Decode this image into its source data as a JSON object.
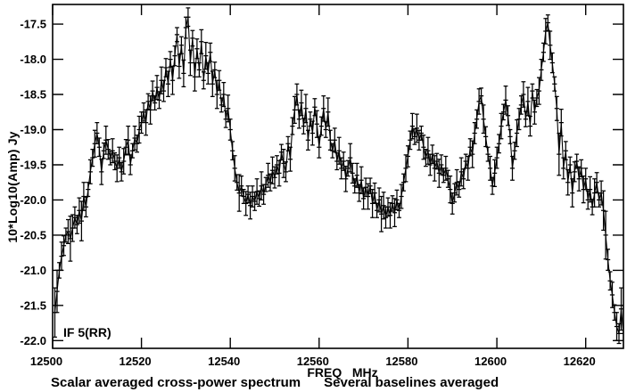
{
  "chart_data": {
    "type": "line",
    "title": "Scalar averaged cross-power spectrum — Several baselines averaged",
    "caption_left": "Scalar averaged cross-power spectrum",
    "caption_right": "Several baselines averaged",
    "xlabel": "FREQ   MHz",
    "ylabel": "10*Log10(Amp) Jy",
    "if_label": "IF 5(RR)",
    "grid": false,
    "legend": "none",
    "marker": "plus-with-capped-error-bars",
    "line_color": "#000000",
    "background": "#ffffff",
    "xlim": [
      12500,
      12628.5
    ],
    "ylim": [
      -22.11,
      -17.22
    ],
    "xticks": [
      12500,
      12520,
      12540,
      12560,
      12580,
      12600,
      12620
    ],
    "xtick_labels": [
      "12500",
      "12520",
      "12540",
      "12560",
      "12580",
      "12600",
      "12620"
    ],
    "yticks": [
      -17.5,
      -18.0,
      -18.5,
      -19.0,
      -19.5,
      -20.0,
      -20.5,
      -21.0,
      -21.5,
      -22.0
    ],
    "ytick_labels": [
      "-17.5",
      "-18.0",
      "-18.5",
      "-19.0",
      "-19.5",
      "-20.0",
      "-20.5",
      "-21.0",
      "-21.5",
      "-22.0"
    ],
    "x_start": 12500.5,
    "x_step": 0.5,
    "values": [
      -21.6,
      -21.3,
      -21.0,
      -20.8,
      -20.65,
      -20.5,
      -20.45,
      -20.55,
      -20.4,
      -20.25,
      -20.35,
      -20.15,
      -20.3,
      -19.95,
      -20.1,
      -19.85,
      -19.6,
      -19.4,
      -19.2,
      -19.05,
      -19.25,
      -19.6,
      -19.3,
      -19.15,
      -19.28,
      -19.4,
      -19.3,
      -19.45,
      -19.55,
      -19.4,
      -19.6,
      -19.45,
      -19.25,
      -19.15,
      -19.5,
      -19.3,
      -19.12,
      -19.2,
      -19.0,
      -18.9,
      -18.75,
      -18.9,
      -18.6,
      -18.72,
      -18.45,
      -18.62,
      -18.4,
      -18.58,
      -18.3,
      -18.45,
      -18.12,
      -18.35,
      -18.0,
      -18.3,
      -17.95,
      -17.65,
      -18.1,
      -17.8,
      -18.2,
      -17.55,
      -17.4,
      -18.05,
      -17.7,
      -18.25,
      -17.85,
      -18.15,
      -17.75,
      -18.3,
      -17.95,
      -18.2,
      -17.9,
      -18.35,
      -18.15,
      -18.5,
      -18.3,
      -18.65,
      -18.5,
      -18.85,
      -18.7,
      -19.0,
      -19.3,
      -19.55,
      -19.75,
      -19.9,
      -19.8,
      -19.95,
      -20.05,
      -19.92,
      -20.08,
      -19.95,
      -20.02,
      -19.88,
      -19.98,
      -19.8,
      -19.92,
      -19.78,
      -19.65,
      -19.75,
      -19.58,
      -19.68,
      -19.5,
      -19.62,
      -19.32,
      -19.48,
      -19.6,
      -19.2,
      -19.42,
      -18.95,
      -18.72,
      -18.5,
      -18.85,
      -18.62,
      -18.95,
      -18.7,
      -19.15,
      -18.85,
      -19.05,
      -18.68,
      -18.92,
      -19.25,
      -18.95,
      -18.7,
      -19.0,
      -18.75,
      -19.15,
      -19.3,
      -19.15,
      -19.45,
      -19.3,
      -19.55,
      -19.45,
      -19.7,
      -19.55,
      -19.4,
      -19.62,
      -19.8,
      -19.65,
      -19.9,
      -19.72,
      -19.98,
      -19.82,
      -19.95,
      -19.8,
      -20.05,
      -19.9,
      -20.15,
      -20.0,
      -20.2,
      -20.08,
      -20.25,
      -20.1,
      -20.22,
      -20.05,
      -20.18,
      -20.0,
      -20.15,
      -19.95,
      -19.75,
      -19.55,
      -19.38,
      -19.15,
      -18.95,
      -19.1,
      -18.98,
      -19.15,
      -19.05,
      -19.25,
      -19.4,
      -19.3,
      -19.5,
      -19.35,
      -19.55,
      -19.45,
      -19.62,
      -19.5,
      -19.65,
      -19.55,
      -19.7,
      -19.85,
      -20.05,
      -19.9,
      -19.75,
      -19.85,
      -19.6,
      -19.7,
      -19.45,
      -19.55,
      -19.25,
      -19.35,
      -19.05,
      -18.85,
      -18.6,
      -18.52,
      -18.85,
      -19.1,
      -19.35,
      -19.55,
      -19.8,
      -19.62,
      -19.4,
      -19.2,
      -18.95,
      -18.75,
      -18.58,
      -18.8,
      -19.1,
      -19.55,
      -19.3,
      -19.05,
      -18.85,
      -18.65,
      -18.5,
      -18.85,
      -18.6,
      -18.95,
      -18.45,
      -18.75,
      -18.55,
      -18.45,
      -18.15,
      -17.9,
      -17.6,
      -17.48,
      -17.8,
      -18.05,
      -18.35,
      -18.7,
      -19.35,
      -18.9,
      -19.55,
      -19.3,
      -19.75,
      -19.5,
      -19.9,
      -19.6,
      -19.45,
      -19.7,
      -19.55,
      -19.85,
      -19.7,
      -20.0,
      -19.85,
      -20.1,
      -19.9,
      -19.75,
      -20.0,
      -19.9,
      -20.15,
      -20.5,
      -20.85,
      -21.15,
      -21.35,
      -21.6,
      -21.8,
      -21.9,
      -21.55,
      -21.9
    ],
    "error_cycle": [
      0.13,
      0.18,
      0.11,
      0.2,
      0.14,
      0.1,
      0.17,
      0.12,
      0.19,
      0.15
    ],
    "error_overrides": {
      "0": 0.35,
      "1": 0.3,
      "7": 0.32,
      "12": 0.28,
      "83": 0.26,
      "147": 0.25,
      "227": 0.3,
      "247": 0.28,
      "248": 0.34,
      "255": 0.3,
      "256": 0.4
    }
  }
}
